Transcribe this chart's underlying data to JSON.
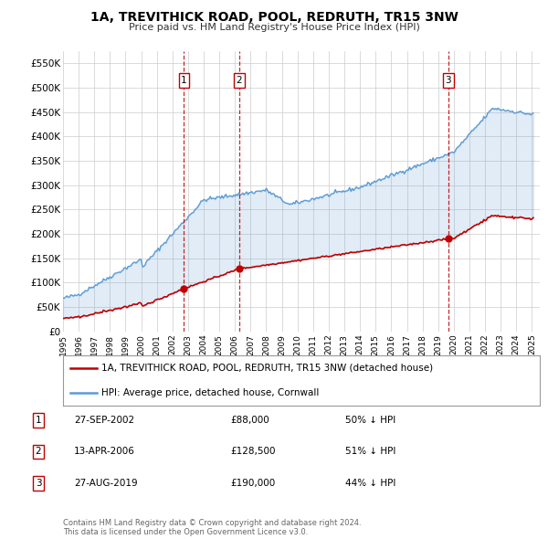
{
  "title": "1A, TREVITHICK ROAD, POOL, REDRUTH, TR15 3NW",
  "subtitle": "Price paid vs. HM Land Registry's House Price Index (HPI)",
  "ylim": [
    0,
    575000
  ],
  "yticks": [
    0,
    50000,
    100000,
    150000,
    200000,
    250000,
    300000,
    350000,
    400000,
    450000,
    500000,
    550000
  ],
  "ytick_labels": [
    "£0",
    "£50K",
    "£100K",
    "£150K",
    "£200K",
    "£250K",
    "£300K",
    "£350K",
    "£400K",
    "£450K",
    "£500K",
    "£550K"
  ],
  "hpi_color": "#5b9bd5",
  "price_color": "#c00000",
  "background_color": "#ffffff",
  "grid_color": "#cccccc",
  "transactions": [
    {
      "date": 2002.74,
      "price": 88000,
      "label": "1",
      "hpi_pct": "50% ↓ HPI",
      "date_str": "27-SEP-2002",
      "price_str": "£88,000"
    },
    {
      "date": 2006.28,
      "price": 128500,
      "label": "2",
      "hpi_pct": "51% ↓ HPI",
      "date_str": "13-APR-2006",
      "price_str": "£128,500"
    },
    {
      "date": 2019.65,
      "price": 190000,
      "label": "3",
      "hpi_pct": "44% ↓ HPI",
      "date_str": "27-AUG-2019",
      "price_str": "£190,000"
    }
  ],
  "legend_property_label": "1A, TREVITHICK ROAD, POOL, REDRUTH, TR15 3NW (detached house)",
  "legend_hpi_label": "HPI: Average price, detached house, Cornwall",
  "footnote": "Contains HM Land Registry data © Crown copyright and database right 2024.\nThis data is licensed under the Open Government Licence v3.0.",
  "xmin": 1995,
  "xmax": 2025.5,
  "xtick_years": [
    1995,
    1996,
    1997,
    1998,
    1999,
    2000,
    2001,
    2002,
    2003,
    2004,
    2005,
    2006,
    2007,
    2008,
    2009,
    2010,
    2011,
    2012,
    2013,
    2014,
    2015,
    2016,
    2017,
    2018,
    2019,
    2020,
    2021,
    2022,
    2023,
    2024,
    2025
  ]
}
